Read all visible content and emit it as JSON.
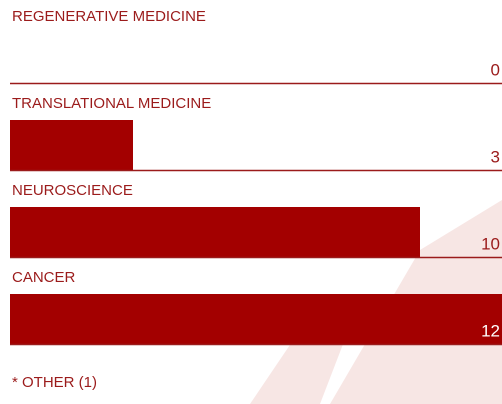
{
  "chart_data": {
    "type": "bar",
    "orientation": "horizontal",
    "categories": [
      "REGENERATIVE MEDICINE",
      "TRANSLATIONAL MEDICINE",
      "NEUROSCIENCE",
      "CANCER"
    ],
    "values": [
      0,
      3,
      10,
      12
    ],
    "color": "#a30000",
    "footnote": "* OTHER (1)"
  }
}
